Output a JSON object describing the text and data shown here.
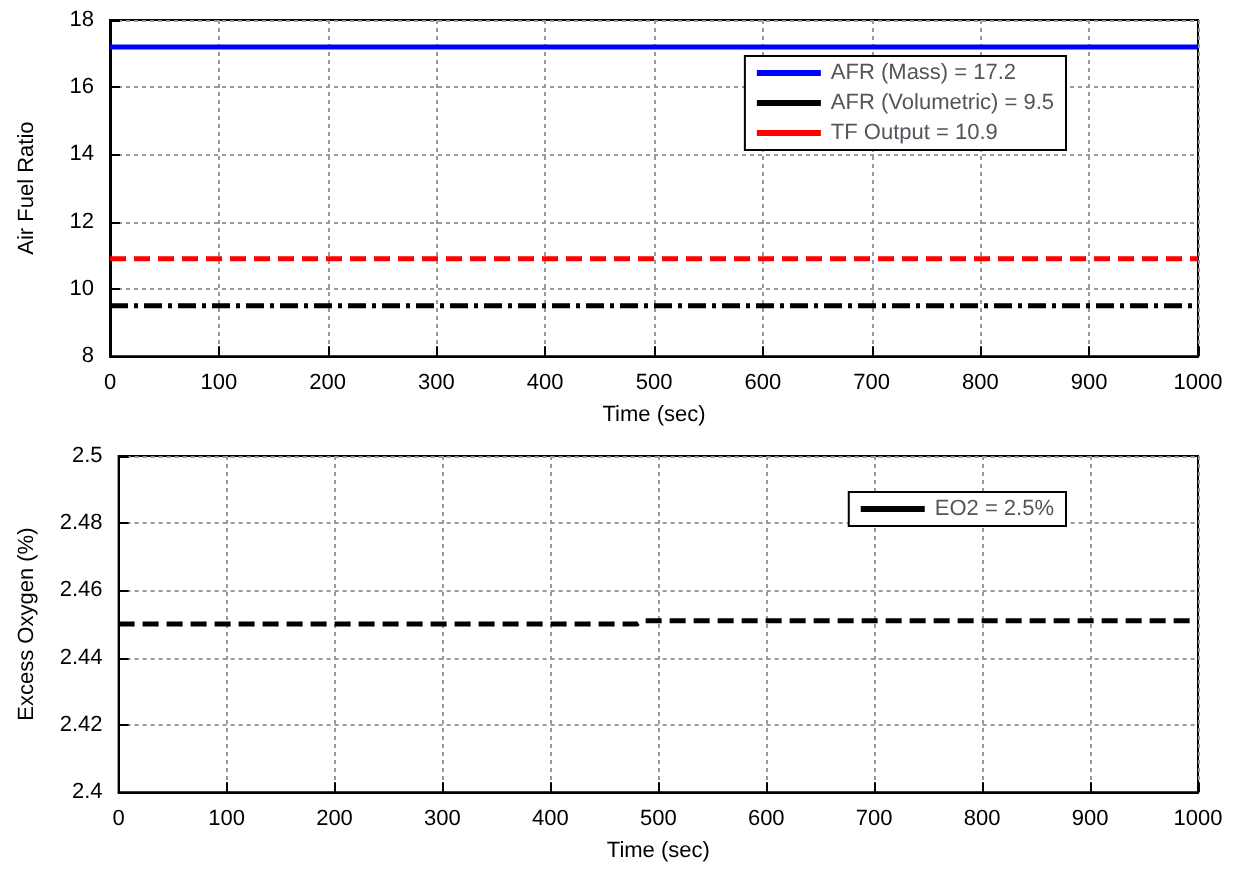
{
  "chart_data": [
    {
      "type": "line",
      "xlabel": "Time (sec)",
      "ylabel": "Air Fuel Ratio",
      "xlim": [
        0,
        1000
      ],
      "xticks": [
        0,
        100,
        200,
        300,
        400,
        500,
        600,
        700,
        800,
        900,
        1000
      ],
      "ylim": [
        8,
        18
      ],
      "yticks": [
        8,
        10,
        12,
        14,
        16,
        18
      ],
      "grid": true,
      "legend": "top right",
      "marker": "none",
      "x": [
        0,
        1000
      ],
      "series": [
        {
          "name": "AFR (Mass) = 17.2",
          "color": "#0000ff",
          "line_style": "solid",
          "values": [
            17.2,
            17.2
          ]
        },
        {
          "name": "AFR (Volumetric) = 9.5",
          "color": "#000000",
          "line_style": "dashdot",
          "values": [
            9.5,
            9.5
          ]
        },
        {
          "name": "TF Output = 10.9",
          "color": "#ff0000",
          "line_style": "dashed",
          "values": [
            10.9,
            10.9
          ]
        }
      ]
    },
    {
      "type": "line",
      "xlabel": "Time (sec)",
      "ylabel": "Excess Oxygen (%)",
      "xlim": [
        0,
        1000
      ],
      "xticks": [
        0,
        100,
        200,
        300,
        400,
        500,
        600,
        700,
        800,
        900,
        1000
      ],
      "ylim": [
        2.4,
        2.5
      ],
      "yticks": [
        2.4,
        2.42,
        2.44,
        2.46,
        2.48,
        2.5
      ],
      "grid": true,
      "legend": "top right",
      "marker": "none",
      "series": [
        {
          "name": "EO2 = 2.5%",
          "color": "#000000",
          "line_style": "dashed",
          "x": [
            0,
            480,
            485,
            1000
          ],
          "values": [
            2.45,
            2.45,
            2.451,
            2.451
          ]
        }
      ]
    }
  ]
}
